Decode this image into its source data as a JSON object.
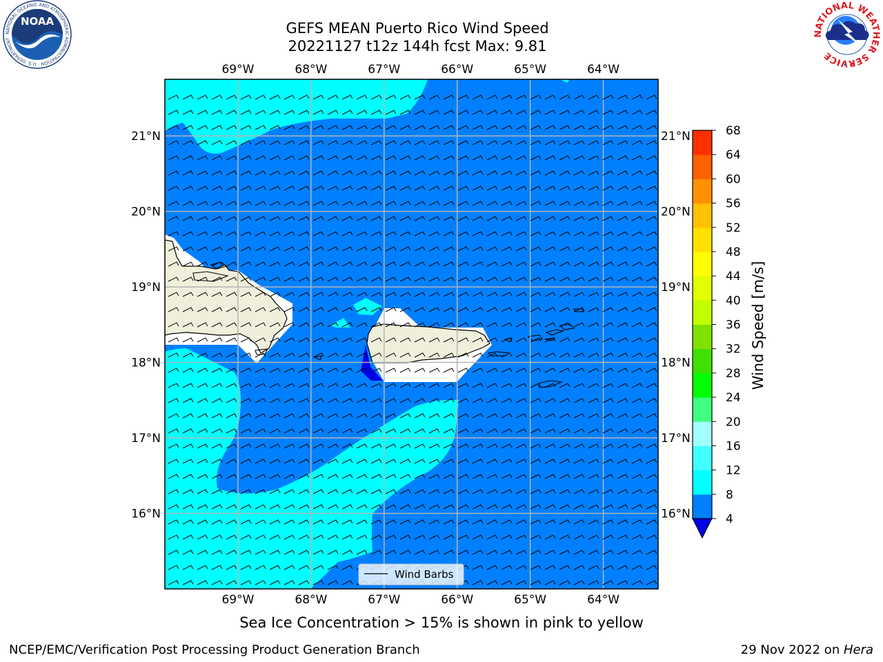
{
  "title": {
    "line1": "GEFS MEAN Puerto Rico Wind Speed",
    "line2": "20221127 t12z 144h fcst   Max: 9.81"
  },
  "map": {
    "lon_ticks": [
      "69°W",
      "68°W",
      "67°W",
      "66°W",
      "65°W",
      "64°W"
    ],
    "lat_ticks": [
      "21°N",
      "20°N",
      "19°N",
      "18°N",
      "17°N",
      "16°N"
    ],
    "lon_values": [
      -69,
      -68,
      -67,
      -66,
      -65,
      -64
    ],
    "lat_values": [
      21,
      20,
      19,
      18,
      17,
      16
    ],
    "lon_range": [
      -70,
      -63.25
    ],
    "lat_range": [
      15,
      21.75
    ],
    "land_color": "#efefdb",
    "no_data_color": "#ffffff"
  },
  "legend": {
    "label": "Wind Barbs"
  },
  "colorbar": {
    "label": "Wind Speed [m/s]",
    "ticks": [
      "68",
      "64",
      "60",
      "56",
      "52",
      "48",
      "44",
      "40",
      "36",
      "32",
      "28",
      "24",
      "20",
      "16",
      "12",
      "8",
      "4"
    ],
    "levels": [
      4,
      8,
      12,
      16,
      20,
      24,
      28,
      32,
      36,
      40,
      44,
      48,
      52,
      56,
      60,
      64,
      68
    ],
    "colors": [
      "#0080ff",
      "#00ffff",
      "#40ffff",
      "#a0ffff",
      "#40ff80",
      "#00ff00",
      "#40e000",
      "#80e000",
      "#c0ff00",
      "#e0ff00",
      "#ffff00",
      "#ffe000",
      "#ffc000",
      "#ff9000",
      "#ff6000",
      "#ff3000",
      "#ff0000"
    ],
    "under_color": "#0000e8"
  },
  "field_colors": {
    "base": "#0080ff",
    "low": "#00ffff",
    "very_low": "#0000e8"
  },
  "note": "Sea Ice Concentration > 15% is shown in pink to yellow",
  "footer": {
    "left": "NCEP/EMC/Verification Post Processing Product Generation Branch",
    "right_prefix": "29 Nov 2022 on ",
    "right_host": "Hera"
  },
  "logos": {
    "left": {
      "text": "NOAA",
      "ring_text": "NATIONAL OCEANIC AND ATMOSPHERIC ADMINISTRATION · U.S. DEPARTMENT OF COMMERCE"
    },
    "right": {
      "ring_text": "NATIONAL WEATHER SERVICE"
    }
  }
}
